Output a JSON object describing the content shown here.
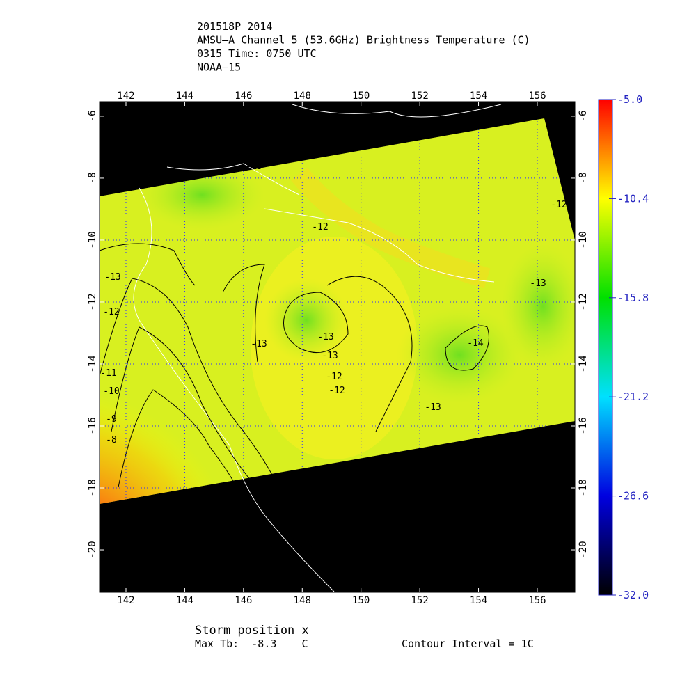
{
  "title_lines": [
    "201518P 2014",
    "AMSU–A Channel 5 (53.6GHz) Brightness Temperature (C)",
    "0315 Time: 0750 UTC",
    "NOAA–15"
  ],
  "map": {
    "xlim": [
      141.1,
      157.28
    ],
    "xticks": [
      142,
      144,
      146,
      148,
      150,
      152,
      154,
      156
    ],
    "ylim": [
      -21.37,
      -5.53
    ],
    "yticks": [
      -6,
      -8,
      -10,
      -12,
      -14,
      -16,
      -18,
      -20
    ],
    "grid": true
  },
  "colorbar": {
    "lim": [
      -32,
      -5
    ],
    "ticks": [
      {
        "value": -5,
        "label": "-5.0"
      },
      -10.4,
      -15.8,
      -21.2,
      -26.6,
      {
        "value": -32,
        "label": "-32.0"
      }
    ]
  },
  "contour_labels": [
    "-12",
    "-13",
    "-12",
    "-13",
    "-13",
    "-12",
    "-12",
    "-13",
    "-14",
    "-13",
    "-11",
    "-10",
    "-9",
    "-8",
    "-13",
    "-12",
    "-13"
  ],
  "footer": {
    "storm": "Storm position x",
    "max_tb": "Max Tb:  -8.3    C",
    "interval": "Contour Interval = 1C"
  }
}
